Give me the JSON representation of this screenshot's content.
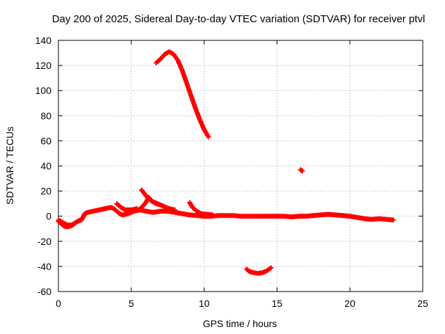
{
  "chart_data": {
    "type": "scatter",
    "title": "Day 200 of 2025, Sidereal Day-to-day VTEC variation (SDTVAR) for receiver ptvl",
    "xlabel": "GPS time / hours",
    "ylabel": "SDTVAR / TECUs",
    "xlim": [
      0,
      25
    ],
    "ylim": [
      -60,
      140
    ],
    "xticks": [
      0,
      5,
      10,
      15,
      20,
      25
    ],
    "yticks": [
      -60,
      -40,
      -20,
      0,
      20,
      40,
      60,
      80,
      100,
      120,
      140
    ],
    "grid": true,
    "color": "#ff0000",
    "marker": "plus",
    "series": [
      {
        "name": "baseline",
        "points": [
          [
            0.0,
            -4
          ],
          [
            0.2,
            -6
          ],
          [
            0.4,
            -8
          ],
          [
            0.6,
            -8.5
          ],
          [
            0.8,
            -8
          ],
          [
            1.0,
            -7
          ],
          [
            1.2,
            -5
          ],
          [
            1.4,
            -3.5
          ],
          [
            1.6,
            -3
          ],
          [
            1.8,
            2
          ],
          [
            2.0,
            3
          ],
          [
            2.4,
            4
          ],
          [
            2.8,
            5
          ],
          [
            3.2,
            6
          ],
          [
            3.6,
            7
          ],
          [
            3.8,
            6
          ],
          [
            4.0,
            4
          ],
          [
            4.2,
            2
          ],
          [
            4.4,
            1
          ],
          [
            4.8,
            2
          ],
          [
            5.2,
            4
          ],
          [
            5.6,
            5
          ],
          [
            6.0,
            4
          ],
          [
            6.5,
            3
          ],
          [
            7.0,
            4
          ],
          [
            7.5,
            4
          ],
          [
            8.0,
            3
          ],
          [
            8.5,
            2
          ],
          [
            9.0,
            1
          ],
          [
            9.5,
            0.5
          ],
          [
            10.0,
            0
          ],
          [
            10.5,
            0
          ],
          [
            11.0,
            0.5
          ],
          [
            11.5,
            0.5
          ],
          [
            12.0,
            0.5
          ],
          [
            12.5,
            0
          ],
          [
            13.0,
            0
          ],
          [
            13.5,
            0
          ],
          [
            14.0,
            0
          ],
          [
            14.5,
            0
          ],
          [
            15.0,
            0
          ],
          [
            15.5,
            0
          ],
          [
            16.0,
            -0.5
          ],
          [
            16.5,
            0
          ],
          [
            17.0,
            0
          ],
          [
            17.5,
            0.5
          ],
          [
            18.0,
            1
          ],
          [
            18.5,
            1.5
          ],
          [
            19.0,
            1
          ],
          [
            19.5,
            0.5
          ],
          [
            20.0,
            0
          ],
          [
            20.5,
            -1
          ],
          [
            21.0,
            -2
          ],
          [
            21.5,
            -2.5
          ],
          [
            22.0,
            -2
          ],
          [
            22.5,
            -2.5
          ],
          [
            23.0,
            -3
          ]
        ]
      },
      {
        "name": "early-low",
        "points": [
          [
            0.0,
            -3
          ],
          [
            0.3,
            -5
          ],
          [
            0.6,
            -7
          ],
          [
            0.9,
            -7
          ],
          [
            1.2,
            -5
          ],
          [
            1.5,
            -3
          ]
        ]
      },
      {
        "name": "rise-4h",
        "points": [
          [
            4.0,
            10
          ],
          [
            4.3,
            7
          ],
          [
            4.6,
            5
          ],
          [
            5.0,
            5
          ],
          [
            5.4,
            6
          ]
        ]
      },
      {
        "name": "branch-6h",
        "points": [
          [
            5.7,
            21
          ],
          [
            5.9,
            18
          ],
          [
            6.1,
            15
          ],
          [
            6.4,
            12
          ],
          [
            6.8,
            10
          ],
          [
            7.2,
            8
          ],
          [
            7.6,
            6
          ],
          [
            8.0,
            5
          ]
        ]
      },
      {
        "name": "branch-6h-b",
        "points": [
          [
            5.5,
            5
          ],
          [
            5.8,
            8
          ],
          [
            6.0,
            11
          ],
          [
            6.2,
            15
          ],
          [
            6.4,
            12
          ],
          [
            6.7,
            10
          ],
          [
            7.0,
            9
          ]
        ]
      },
      {
        "name": "branch-9h",
        "points": [
          [
            9.0,
            11
          ],
          [
            9.2,
            7
          ],
          [
            9.5,
            4
          ],
          [
            9.8,
            2
          ],
          [
            10.2,
            1.5
          ],
          [
            10.6,
            1
          ]
        ]
      },
      {
        "name": "high-arc",
        "points": [
          [
            6.7,
            122
          ],
          [
            7.0,
            125
          ],
          [
            7.3,
            129
          ],
          [
            7.6,
            131
          ],
          [
            7.9,
            129
          ],
          [
            8.2,
            124
          ],
          [
            8.5,
            116
          ],
          [
            8.8,
            106
          ],
          [
            9.1,
            96
          ],
          [
            9.4,
            86
          ],
          [
            9.7,
            77
          ],
          [
            10.0,
            69
          ],
          [
            10.3,
            63
          ]
        ]
      },
      {
        "name": "low-arc",
        "points": [
          [
            12.9,
            -42
          ],
          [
            13.1,
            -44
          ],
          [
            13.4,
            -45
          ],
          [
            13.7,
            -45.5
          ],
          [
            14.0,
            -45
          ],
          [
            14.3,
            -43.5
          ],
          [
            14.6,
            -41
          ]
        ]
      },
      {
        "name": "isolated",
        "points": [
          [
            16.6,
            37
          ],
          [
            16.75,
            36
          ]
        ]
      }
    ]
  }
}
